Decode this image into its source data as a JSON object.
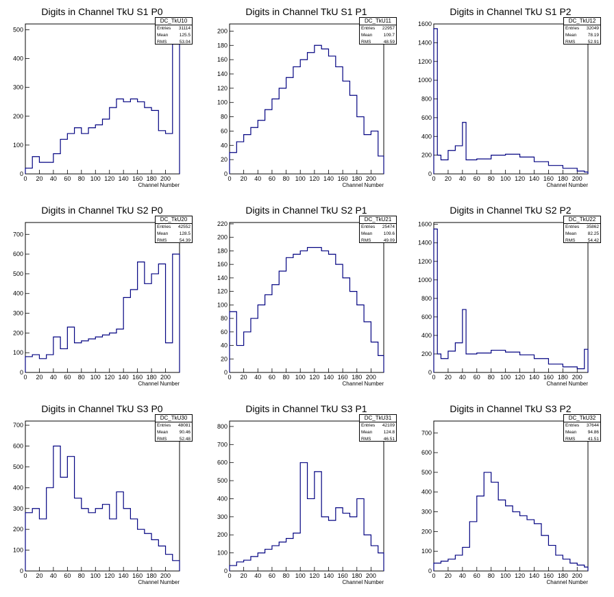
{
  "x_axis_label": "Channel Number",
  "line_color": "#000080",
  "stat_labels": {
    "entries": "Entries",
    "mean": "Mean",
    "rms": "RMS"
  },
  "chart_data": [
    {
      "type": "histogram",
      "title": "Digits in Channel TkU S1 P0",
      "xlabel": "Channel Number",
      "name": "DC_TkU10",
      "entries": "31114",
      "mean": "125.5",
      "rms": "53.04",
      "xlim": [
        0,
        220
      ],
      "ylim": [
        0,
        520
      ],
      "xticks": [
        0,
        20,
        40,
        60,
        80,
        100,
        120,
        140,
        160,
        180,
        200
      ],
      "yticks": [
        0,
        100,
        200,
        300,
        400,
        500
      ],
      "x": [
        0,
        10,
        20,
        30,
        40,
        50,
        60,
        70,
        80,
        90,
        100,
        110,
        120,
        130,
        140,
        150,
        160,
        170,
        180,
        190,
        200,
        210
      ],
      "values": [
        20,
        60,
        40,
        40,
        70,
        120,
        140,
        160,
        140,
        160,
        170,
        190,
        230,
        260,
        250,
        260,
        250,
        230,
        220,
        150,
        140,
        450
      ]
    },
    {
      "type": "histogram",
      "title": "Digits in Channel TkU S1 P1",
      "xlabel": "Channel Number",
      "name": "DC_TkU11",
      "entries": "22957",
      "mean": "109.7",
      "rms": "48.59",
      "xlim": [
        0,
        218
      ],
      "ylim": [
        0,
        210
      ],
      "xticks": [
        0,
        20,
        40,
        60,
        80,
        100,
        120,
        140,
        160,
        180,
        200
      ],
      "yticks": [
        0,
        20,
        40,
        60,
        80,
        100,
        120,
        140,
        160,
        180,
        200
      ],
      "x": [
        0,
        10,
        20,
        30,
        40,
        50,
        60,
        70,
        80,
        90,
        100,
        110,
        120,
        130,
        140,
        150,
        160,
        170,
        180,
        190,
        200,
        210
      ],
      "values": [
        30,
        45,
        55,
        65,
        75,
        90,
        105,
        120,
        135,
        150,
        160,
        170,
        180,
        175,
        165,
        150,
        130,
        110,
        80,
        55,
        60,
        25
      ]
    },
    {
      "type": "histogram",
      "title": "Digits in Channel TkU S1 P2",
      "xlabel": "Channel Number",
      "name": "DC_TkU12",
      "entries": "32049",
      "mean": "78.19",
      "rms": "52.91",
      "xlim": [
        0,
        215
      ],
      "ylim": [
        0,
        1600
      ],
      "xticks": [
        0,
        20,
        40,
        60,
        80,
        100,
        120,
        140,
        160,
        180,
        200
      ],
      "yticks": [
        0,
        200,
        400,
        600,
        800,
        1000,
        1200,
        1400,
        1600
      ],
      "x": [
        0,
        5,
        10,
        20,
        30,
        40,
        45,
        60,
        80,
        100,
        120,
        140,
        160,
        180,
        200,
        210
      ],
      "values": [
        1550,
        200,
        150,
        250,
        300,
        550,
        150,
        160,
        200,
        210,
        180,
        130,
        90,
        60,
        30,
        20
      ]
    },
    {
      "type": "histogram",
      "title": "Digits in Channel TkU S2 P0",
      "xlabel": "Channel Number",
      "name": "DC_TkU20",
      "entries": "42552",
      "mean": "128.5",
      "rms": "54.39",
      "xlim": [
        0,
        220
      ],
      "ylim": [
        0,
        760
      ],
      "xticks": [
        0,
        20,
        40,
        60,
        80,
        100,
        120,
        140,
        160,
        180,
        200
      ],
      "yticks": [
        0,
        100,
        200,
        300,
        400,
        500,
        600,
        700
      ],
      "x": [
        0,
        10,
        20,
        30,
        40,
        50,
        60,
        70,
        80,
        90,
        100,
        110,
        120,
        130,
        140,
        150,
        160,
        170,
        180,
        190,
        200,
        210
      ],
      "values": [
        80,
        90,
        70,
        90,
        180,
        120,
        230,
        150,
        160,
        170,
        180,
        190,
        200,
        220,
        380,
        420,
        560,
        450,
        500,
        550,
        150,
        600
      ]
    },
    {
      "type": "histogram",
      "title": "Digits in Channel TkU S2 P1",
      "xlabel": "Channel Number",
      "name": "DC_TkU21",
      "entries": "25474",
      "mean": "109.6",
      "rms": "49.09",
      "xlim": [
        0,
        218
      ],
      "ylim": [
        0,
        222
      ],
      "xticks": [
        0,
        20,
        40,
        60,
        80,
        100,
        120,
        140,
        160,
        180,
        200
      ],
      "yticks": [
        0,
        20,
        40,
        60,
        80,
        100,
        120,
        140,
        160,
        180,
        200,
        220
      ],
      "x": [
        0,
        10,
        20,
        30,
        40,
        50,
        60,
        70,
        80,
        90,
        100,
        110,
        120,
        130,
        140,
        150,
        160,
        170,
        180,
        190,
        200,
        210
      ],
      "values": [
        90,
        40,
        60,
        80,
        100,
        115,
        130,
        150,
        170,
        175,
        180,
        185,
        185,
        180,
        175,
        160,
        140,
        120,
        100,
        75,
        45,
        25
      ]
    },
    {
      "type": "histogram",
      "title": "Digits in Channel TkU S2 P2",
      "xlabel": "Channel Number",
      "name": "DC_TkU22",
      "entries": "35862",
      "mean": "82.25",
      "rms": "54.42",
      "xlim": [
        0,
        215
      ],
      "ylim": [
        0,
        1620
      ],
      "xticks": [
        0,
        20,
        40,
        60,
        80,
        100,
        120,
        140,
        160,
        180,
        200
      ],
      "yticks": [
        0,
        200,
        400,
        600,
        800,
        1000,
        1200,
        1400,
        1600
      ],
      "x": [
        0,
        5,
        10,
        20,
        30,
        40,
        45,
        60,
        80,
        100,
        120,
        140,
        160,
        180,
        200,
        210
      ],
      "values": [
        1550,
        200,
        150,
        230,
        320,
        680,
        200,
        210,
        240,
        220,
        190,
        150,
        90,
        60,
        40,
        250
      ]
    },
    {
      "type": "histogram",
      "title": "Digits in Channel TkU S3 P0",
      "xlabel": "Channel Number",
      "name": "DC_TkU30",
      "entries": "48081",
      "mean": "90.46",
      "rms": "52.48",
      "xlim": [
        0,
        220
      ],
      "ylim": [
        0,
        720
      ],
      "xticks": [
        0,
        20,
        40,
        60,
        80,
        100,
        120,
        140,
        160,
        180,
        200
      ],
      "yticks": [
        0,
        100,
        200,
        300,
        400,
        500,
        600,
        700
      ],
      "x": [
        0,
        10,
        20,
        30,
        40,
        50,
        60,
        70,
        80,
        90,
        100,
        110,
        120,
        130,
        140,
        150,
        160,
        170,
        180,
        190,
        200,
        210
      ],
      "values": [
        280,
        300,
        250,
        400,
        600,
        450,
        550,
        350,
        300,
        280,
        300,
        320,
        250,
        380,
        300,
        250,
        200,
        180,
        150,
        120,
        80,
        50
      ]
    },
    {
      "type": "histogram",
      "title": "Digits in Channel TkU S3 P1",
      "xlabel": "Channel Number",
      "name": "DC_TkU31",
      "entries": "42109",
      "mean": "124.8",
      "rms": "46.51",
      "xlim": [
        0,
        218
      ],
      "ylim": [
        0,
        830
      ],
      "xticks": [
        0,
        20,
        40,
        60,
        80,
        100,
        120,
        140,
        160,
        180,
        200
      ],
      "yticks": [
        0,
        100,
        200,
        300,
        400,
        500,
        600,
        700,
        800
      ],
      "x": [
        0,
        10,
        20,
        30,
        40,
        50,
        60,
        70,
        80,
        90,
        100,
        110,
        120,
        130,
        140,
        150,
        160,
        170,
        180,
        190,
        200,
        210
      ],
      "values": [
        30,
        50,
        60,
        80,
        100,
        120,
        140,
        160,
        180,
        210,
        600,
        400,
        550,
        300,
        280,
        350,
        320,
        300,
        400,
        200,
        140,
        100
      ]
    },
    {
      "type": "histogram",
      "title": "Digits in Channel TkU S3 P2",
      "xlabel": "Channel Number",
      "name": "DC_TkU32",
      "entries": "37644",
      "mean": "94.86",
      "rms": "41.51",
      "xlim": [
        0,
        215
      ],
      "ylim": [
        0,
        760
      ],
      "xticks": [
        0,
        20,
        40,
        60,
        80,
        100,
        120,
        140,
        160,
        180,
        200
      ],
      "yticks": [
        0,
        100,
        200,
        300,
        400,
        500,
        600,
        700
      ],
      "x": [
        0,
        10,
        20,
        30,
        40,
        50,
        60,
        70,
        80,
        90,
        100,
        110,
        120,
        130,
        140,
        150,
        160,
        170,
        180,
        190,
        200,
        210
      ],
      "values": [
        40,
        50,
        60,
        80,
        120,
        250,
        380,
        500,
        450,
        360,
        330,
        300,
        280,
        260,
        240,
        180,
        130,
        80,
        60,
        40,
        30,
        20
      ]
    }
  ]
}
